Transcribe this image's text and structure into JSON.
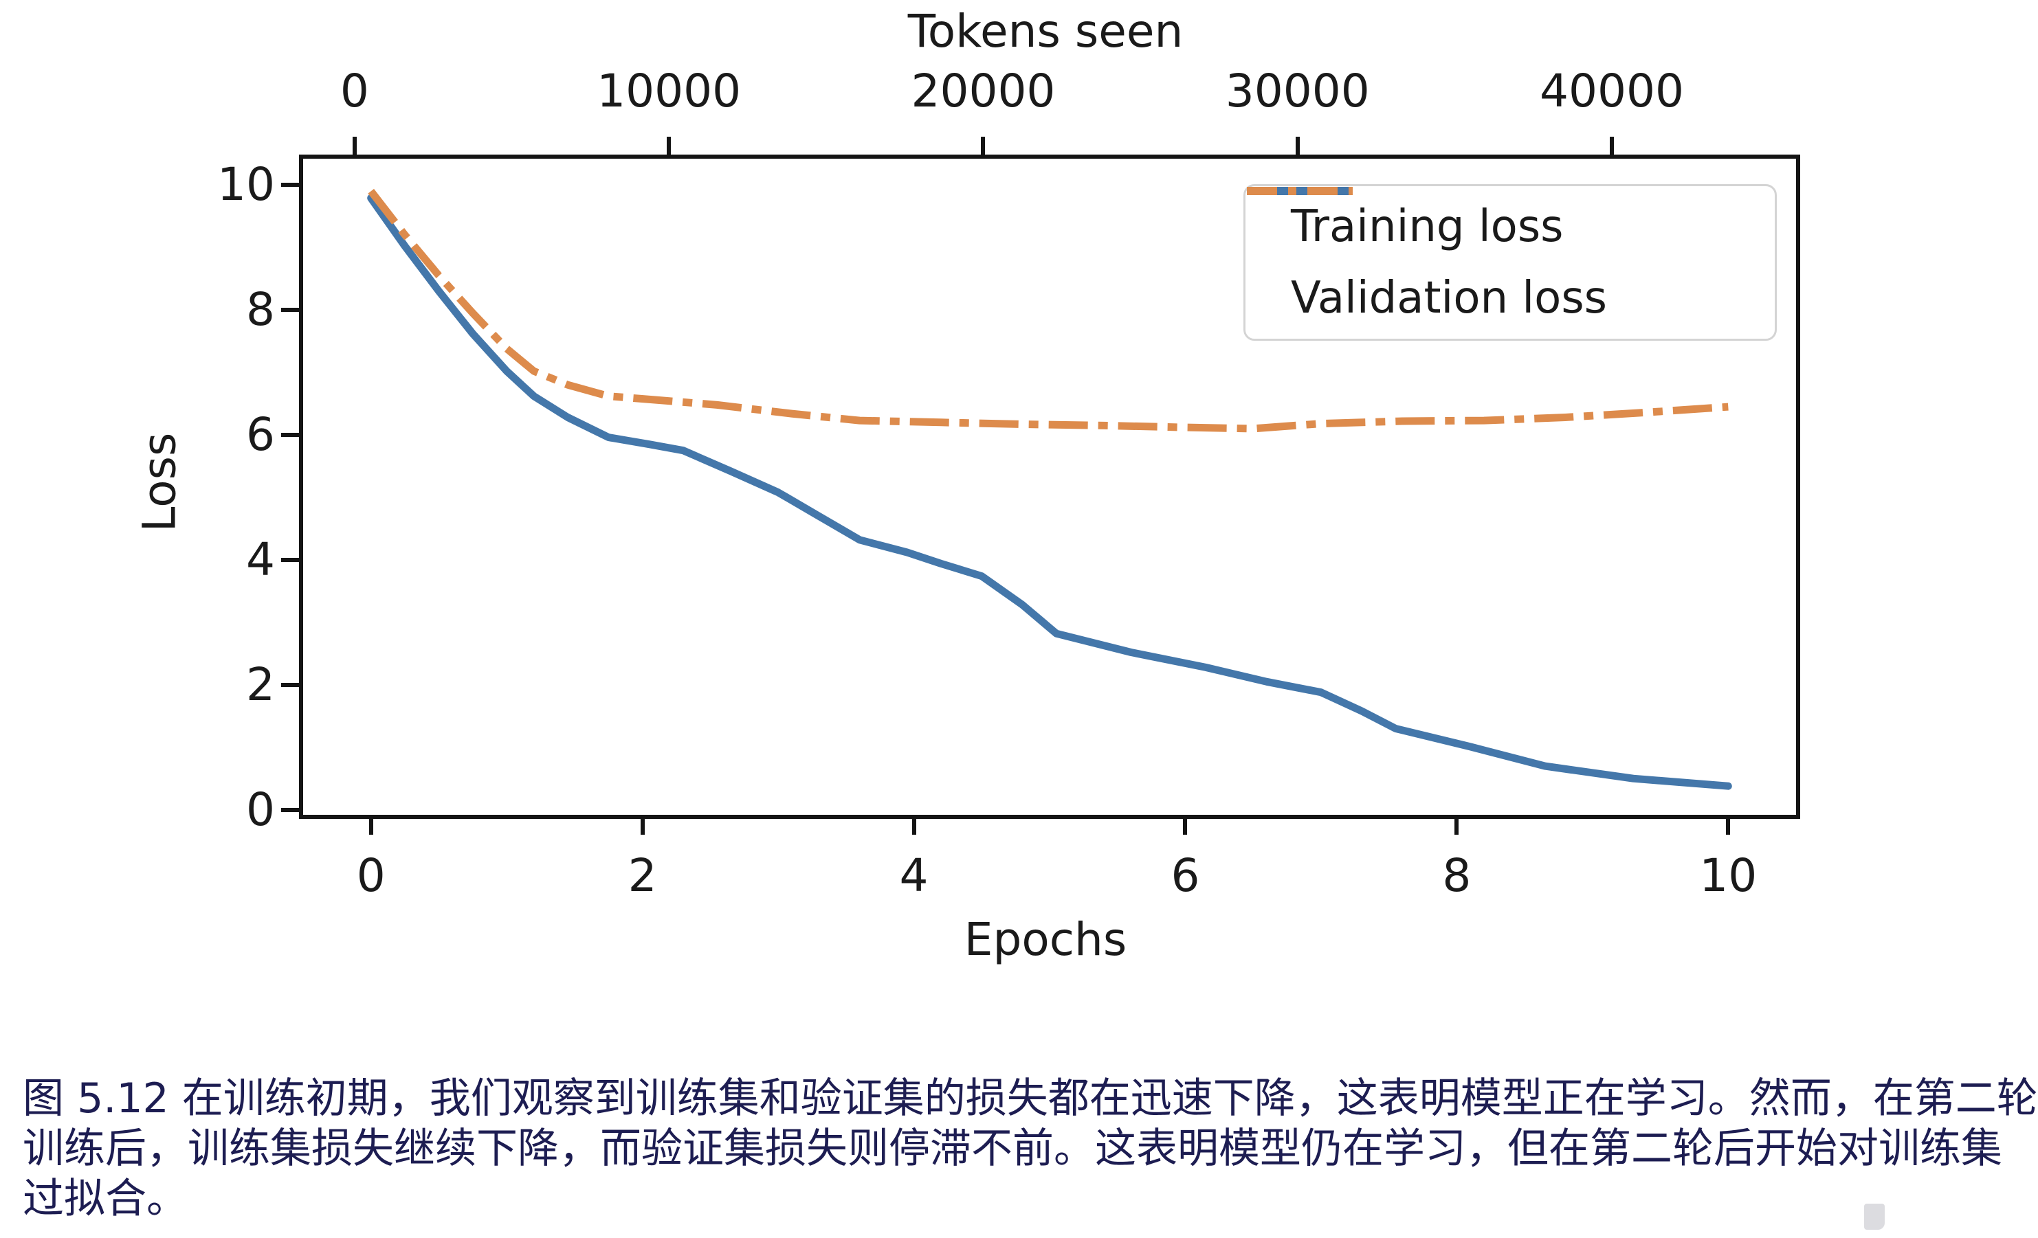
{
  "figure": {
    "top_axis_title": "Tokens seen",
    "y_axis_title": "Loss",
    "x_axis_title": "Epochs"
  },
  "legend": {
    "items": [
      {
        "label": "Training loss",
        "color": "#4477aa",
        "style": "solid"
      },
      {
        "label": "Validation loss",
        "color": "#dd8b4c",
        "style": "dashdot"
      }
    ]
  },
  "chart_data": {
    "type": "line",
    "title": "",
    "xlabel": "Epochs",
    "ylabel": "Loss",
    "top_xlabel": "Tokens seen",
    "grid": false,
    "legend_position": "upper right",
    "xlim": [
      -0.5,
      10.5
    ],
    "ylim": [
      -0.08,
      10.42
    ],
    "tokens_xlim": [
      -1638,
      45860
    ],
    "x_ticks": [
      0,
      2,
      4,
      6,
      8,
      10
    ],
    "y_ticks": [
      0,
      2,
      4,
      6,
      8,
      10
    ],
    "top_ticks": [
      0,
      10000,
      20000,
      30000,
      40000
    ],
    "series": [
      {
        "name": "Training loss",
        "color": "#4477aa",
        "dash": "solid",
        "x": [
          0,
          0.25,
          0.5,
          0.75,
          1.0,
          1.2,
          1.45,
          1.75,
          2.05,
          2.3,
          2.65,
          3.0,
          3.3,
          3.6,
          3.95,
          4.2,
          4.5,
          4.8,
          5.05,
          5.6,
          6.15,
          6.6,
          7.0,
          7.3,
          7.55,
          8.1,
          8.65,
          9.3,
          10
        ],
        "y": [
          9.79,
          9.02,
          8.3,
          7.62,
          7.02,
          6.62,
          6.28,
          5.96,
          5.85,
          5.75,
          5.42,
          5.08,
          4.7,
          4.32,
          4.12,
          3.94,
          3.74,
          3.28,
          2.82,
          2.52,
          2.28,
          2.05,
          1.88,
          1.58,
          1.3,
          1.01,
          0.7,
          0.5,
          0.38
        ]
      },
      {
        "name": "Validation loss",
        "color": "#dd8b4c",
        "dash": "dashdot",
        "x": [
          0,
          0.25,
          0.5,
          0.75,
          1.0,
          1.2,
          1.45,
          1.75,
          2.1,
          2.55,
          3.1,
          3.6,
          4.2,
          4.8,
          5.4,
          6.0,
          6.5,
          7.0,
          7.6,
          8.2,
          8.8,
          9.4,
          10
        ],
        "y": [
          9.9,
          9.2,
          8.55,
          7.95,
          7.38,
          7.02,
          6.8,
          6.62,
          6.56,
          6.48,
          6.34,
          6.23,
          6.2,
          6.17,
          6.15,
          6.12,
          6.1,
          6.18,
          6.22,
          6.23,
          6.28,
          6.36,
          6.45
        ]
      }
    ]
  },
  "caption": {
    "lines": [
      "图 5.12 在训练初期，我们观察到训练集和验证集的损失都在迅速下降，这表明模型正在学习。然而，在第二轮",
      "训练后，训练集损失继续下降，而验证集损失则停滞不前。这表明模型仍在学习，但在第二轮后开始对训练集",
      "过拟合。"
    ]
  }
}
